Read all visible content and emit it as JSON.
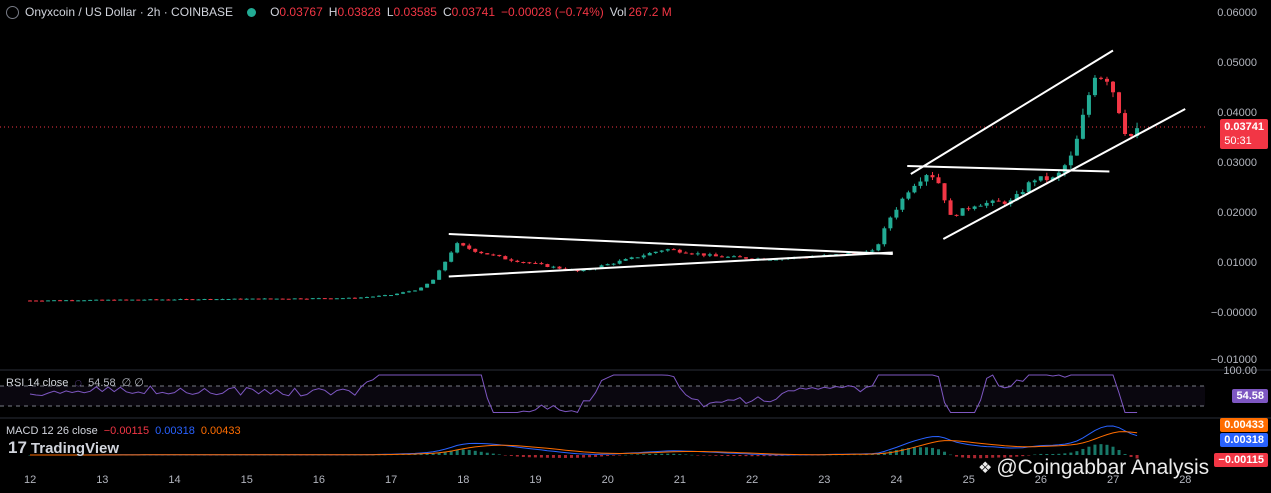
{
  "header": {
    "symbol_title": "Onyxcoin / US Dollar · 2h · COINBASE",
    "open_label": "O",
    "open": "0.03767",
    "high_label": "H",
    "high": "0.03828",
    "low_label": "L",
    "low": "0.03585",
    "close_label": "C",
    "close": "0.03741",
    "change": "−0.00028 (−0.74%)",
    "vol_label": "Vol",
    "volume": "267.2 M"
  },
  "rsi": {
    "label": "RSI 14 close",
    "value": "54.58",
    "extra": "∅ ∅",
    "tag": "54.58",
    "top_tick": "100.00"
  },
  "macd": {
    "label": "MACD 12 26 close",
    "hist": "−0.00115",
    "macd": "0.00318",
    "signal": "0.00433",
    "tag_signal": "0.00433",
    "tag_macd": "0.00318",
    "tag_hist": "−0.00115"
  },
  "price_tag": {
    "value": "0.03741",
    "countdown": "50:31"
  },
  "branding": {
    "logo_text": "17",
    "name": "TradingView"
  },
  "watermark": "@Coingabbar Analysis",
  "colors": {
    "up": "#22ab94",
    "down": "#f23645",
    "rsi": "#7e57c2",
    "macd": "#2962ff",
    "signal": "#ff6d00",
    "trendline": "#ffffff"
  },
  "chart_data": {
    "type": "candlestick",
    "title": "Onyxcoin / US Dollar · 2h · COINBASE",
    "y_axis": {
      "ticks": [
        "0.06000",
        "0.05000",
        "0.04000",
        "0.03000",
        "0.02000",
        "0.01000",
        "−0.00000",
        "−0.01000"
      ],
      "range": [
        -0.01,
        0.06
      ]
    },
    "x_axis": {
      "ticks": [
        "12",
        "13",
        "14",
        "15",
        "16",
        "17",
        "18",
        "19",
        "20",
        "21",
        "22",
        "23",
        "24",
        "25",
        "26",
        "27",
        "28"
      ]
    },
    "current_price": 0.03741,
    "keypoints": [
      [
        12.0,
        0.0027
      ],
      [
        16.5,
        0.0032
      ],
      [
        17.0,
        0.0038
      ],
      [
        17.4,
        0.005
      ],
      [
        17.6,
        0.007
      ],
      [
        17.9,
        0.014
      ],
      [
        18.2,
        0.0125
      ],
      [
        18.6,
        0.011
      ],
      [
        19.0,
        0.01
      ],
      [
        19.6,
        0.0085
      ],
      [
        20.3,
        0.011
      ],
      [
        20.8,
        0.013
      ],
      [
        21.5,
        0.0115
      ],
      [
        22.2,
        0.011
      ],
      [
        22.9,
        0.0115
      ],
      [
        23.7,
        0.0125
      ],
      [
        23.9,
        0.019
      ],
      [
        24.2,
        0.0255
      ],
      [
        24.45,
        0.0285
      ],
      [
        24.6,
        0.026
      ],
      [
        24.75,
        0.0195
      ],
      [
        25.1,
        0.022
      ],
      [
        25.6,
        0.0225
      ],
      [
        25.9,
        0.027
      ],
      [
        26.2,
        0.027
      ],
      [
        26.45,
        0.032
      ],
      [
        26.65,
        0.043
      ],
      [
        26.75,
        0.048
      ],
      [
        26.95,
        0.047
      ],
      [
        27.1,
        0.04
      ],
      [
        27.2,
        0.035
      ],
      [
        27.4,
        0.03741
      ]
    ],
    "trendlines": [
      {
        "name": "triangle-top",
        "from": [
          17.8,
          0.016
        ],
        "to": [
          23.95,
          0.012
        ]
      },
      {
        "name": "triangle-bottom",
        "from": [
          17.8,
          0.0075
        ],
        "to": [
          23.95,
          0.0123
        ]
      },
      {
        "name": "channel-upper",
        "from": [
          24.2,
          0.028
        ],
        "to": [
          27.0,
          0.0527
        ]
      },
      {
        "name": "channel-lower",
        "from": [
          24.65,
          0.015
        ],
        "to": [
          28.0,
          0.041
        ]
      },
      {
        "name": "breakout-flat",
        "from": [
          24.15,
          0.0296
        ],
        "to": [
          26.95,
          0.0285
        ]
      }
    ],
    "rsi_range": [
      0,
      100
    ],
    "macd_values": {
      "macd": 0.00318,
      "signal": 0.00433,
      "hist": -0.00115
    }
  }
}
